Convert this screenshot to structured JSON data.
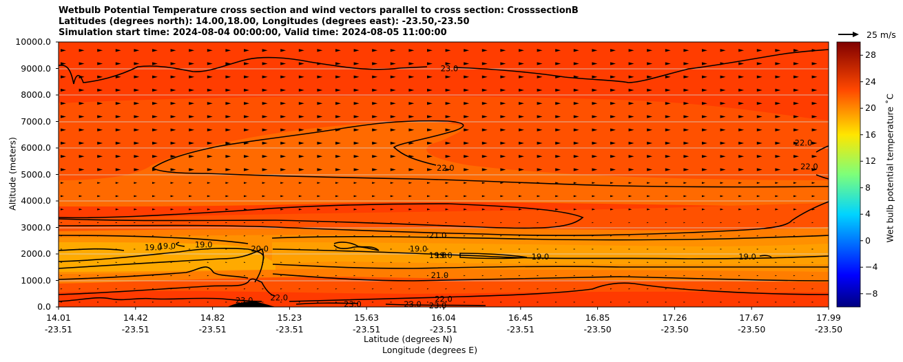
{
  "chart_data": {
    "type": "heatmap",
    "title_lines": [
      "Wetbulb Potential Temperature cross section and wind vectors parallel to cross section: CrosssectionB",
      "Latitudes (degrees north): 14.00,18.00, Longitudes (degrees east): -23.50,-23.50",
      "Simulation start time: 2024-08-04 00:00:00, Valid time: 2024-08-05 11:00:00"
    ],
    "ylabel": "Altitude (meters)",
    "xlabel_lat": "Latitude (degrees N)",
    "xlabel_lon": "Longitude (degrees E)",
    "ylim": [
      0,
      10000
    ],
    "y_ticks": [
      "0.0",
      "1000.0",
      "2000.0",
      "3000.0",
      "4000.0",
      "5000.0",
      "6000.0",
      "7000.0",
      "8000.0",
      "9000.0",
      "10000.0"
    ],
    "x_ticks": [
      {
        "lat": "14.01",
        "lon": "-23.51"
      },
      {
        "lat": "14.42",
        "lon": "-23.51"
      },
      {
        "lat": "14.82",
        "lon": "-23.51"
      },
      {
        "lat": "15.23",
        "lon": "-23.51"
      },
      {
        "lat": "15.63",
        "lon": "-23.51"
      },
      {
        "lat": "16.04",
        "lon": "-23.51"
      },
      {
        "lat": "16.45",
        "lon": "-23.51"
      },
      {
        "lat": "16.85",
        "lon": "-23.50"
      },
      {
        "lat": "17.26",
        "lon": "-23.50"
      },
      {
        "lat": "17.67",
        "lon": "-23.50"
      },
      {
        "lat": "17.99",
        "lon": "-23.50"
      }
    ],
    "colorbar": {
      "label": "Wet bulb potential temperature ˚C",
      "range": [
        -10,
        30
      ],
      "ticks": [
        "−8",
        "−4",
        "0",
        "4",
        "8",
        "12",
        "16",
        "20",
        "24",
        "28"
      ],
      "tick_values": [
        -8,
        -4,
        0,
        4,
        8,
        12,
        16,
        20,
        24,
        28
      ]
    },
    "wind_key": "25 m/s",
    "contour_labels": [
      {
        "text": "23.0",
        "lat": 16.03,
        "alt": 9000
      },
      {
        "text": "22.0",
        "lat": 16.01,
        "alt": 5250
      },
      {
        "text": "22.0",
        "lat": 17.86,
        "alt": 6200
      },
      {
        "text": "22.0",
        "lat": 17.89,
        "alt": 5300
      },
      {
        "text": "21.0",
        "lat": 15.97,
        "alt": 2700
      },
      {
        "text": "21.0",
        "lat": 15.98,
        "alt": 1200
      },
      {
        "text": "19.0",
        "lat": 14.5,
        "alt": 2250
      },
      {
        "text": "19.0",
        "lat": 14.57,
        "alt": 2300
      },
      {
        "text": "19.0",
        "lat": 14.76,
        "alt": 2350
      },
      {
        "text": "20.0",
        "lat": 15.05,
        "alt": 2200
      },
      {
        "text": "19.0",
        "lat": 15.87,
        "alt": 2200
      },
      {
        "text": "19.0",
        "lat": 15.97,
        "alt": 1950
      },
      {
        "text": "19.0",
        "lat": 16.0,
        "alt": 1950
      },
      {
        "text": "19.0",
        "lat": 16.5,
        "alt": 1900
      },
      {
        "text": "19.0",
        "lat": 17.57,
        "alt": 1900
      },
      {
        "text": "22.0",
        "lat": 15.15,
        "alt": 350
      },
      {
        "text": "22.0",
        "lat": 16.0,
        "alt": 300
      },
      {
        "text": "23.0",
        "lat": 14.97,
        "alt": 250
      },
      {
        "text": "23.0",
        "lat": 15.53,
        "alt": 100
      },
      {
        "text": "23.0",
        "lat": 15.84,
        "alt": 100
      },
      {
        "text": "23.0",
        "lat": 15.97,
        "alt": 50
      }
    ]
  }
}
